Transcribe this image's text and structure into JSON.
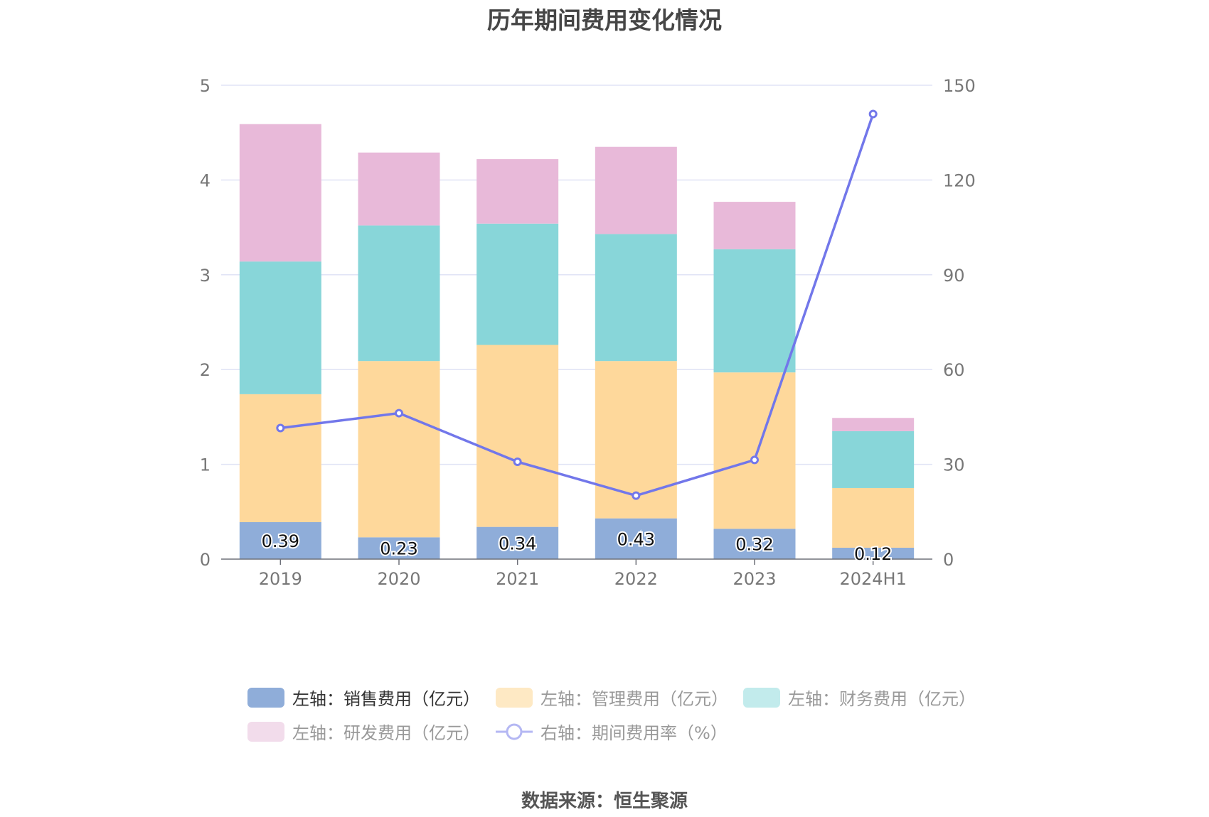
{
  "chart_data": {
    "type": "bar",
    "title": "历年期间费用变化情况",
    "categories": [
      "2019",
      "2020",
      "2021",
      "2022",
      "2023",
      "2024H1"
    ],
    "y_left": {
      "ylim": [
        0,
        5
      ],
      "ticks": [
        "0",
        "1",
        "2",
        "3",
        "4",
        "5"
      ]
    },
    "y_right": {
      "ylim": [
        0,
        150
      ],
      "ticks": [
        "0",
        "30",
        "60",
        "90",
        "120",
        "150"
      ]
    },
    "stacked": true,
    "series": [
      {
        "name": "左轴：销售费用（亿元）",
        "axis": "left",
        "color": "#8fadd9",
        "values": [
          0.39,
          0.23,
          0.34,
          0.43,
          0.32,
          0.12
        ],
        "labels": [
          "0.39",
          "0.23",
          "0.34",
          "0.43",
          "0.32",
          "0.12"
        ]
      },
      {
        "name": "左轴：管理费用（亿元）",
        "axis": "left",
        "color": "#fed89b",
        "values": [
          1.35,
          1.86,
          1.92,
          1.66,
          1.65,
          0.63
        ]
      },
      {
        "name": "左轴：财务费用（亿元）",
        "axis": "left",
        "color": "#88d6d9",
        "values": [
          1.4,
          1.43,
          1.28,
          1.34,
          1.3,
          0.6
        ]
      },
      {
        "name": "左轴：研发费用（亿元）",
        "axis": "left",
        "color": "#e8b9d9",
        "values": [
          1.45,
          0.77,
          0.68,
          0.92,
          0.5,
          0.14
        ]
      },
      {
        "name": "右轴：期间费用率（%）",
        "axis": "right",
        "type": "line",
        "color": "#7277ea",
        "values": [
          41.5,
          46.2,
          30.8,
          20.1,
          31.4,
          140.9
        ]
      }
    ],
    "grid": true,
    "legend_position": "bottom"
  },
  "legend_text_colors": [
    "#333333",
    "#999999",
    "#999999",
    "#999999",
    "#999999"
  ],
  "legend_swatch_colors": [
    "#8fadd9",
    "#fee9c4",
    "#c2ebec",
    "#f2dceb",
    "#b4b7f3"
  ],
  "source": "数据来源：恒生聚源"
}
